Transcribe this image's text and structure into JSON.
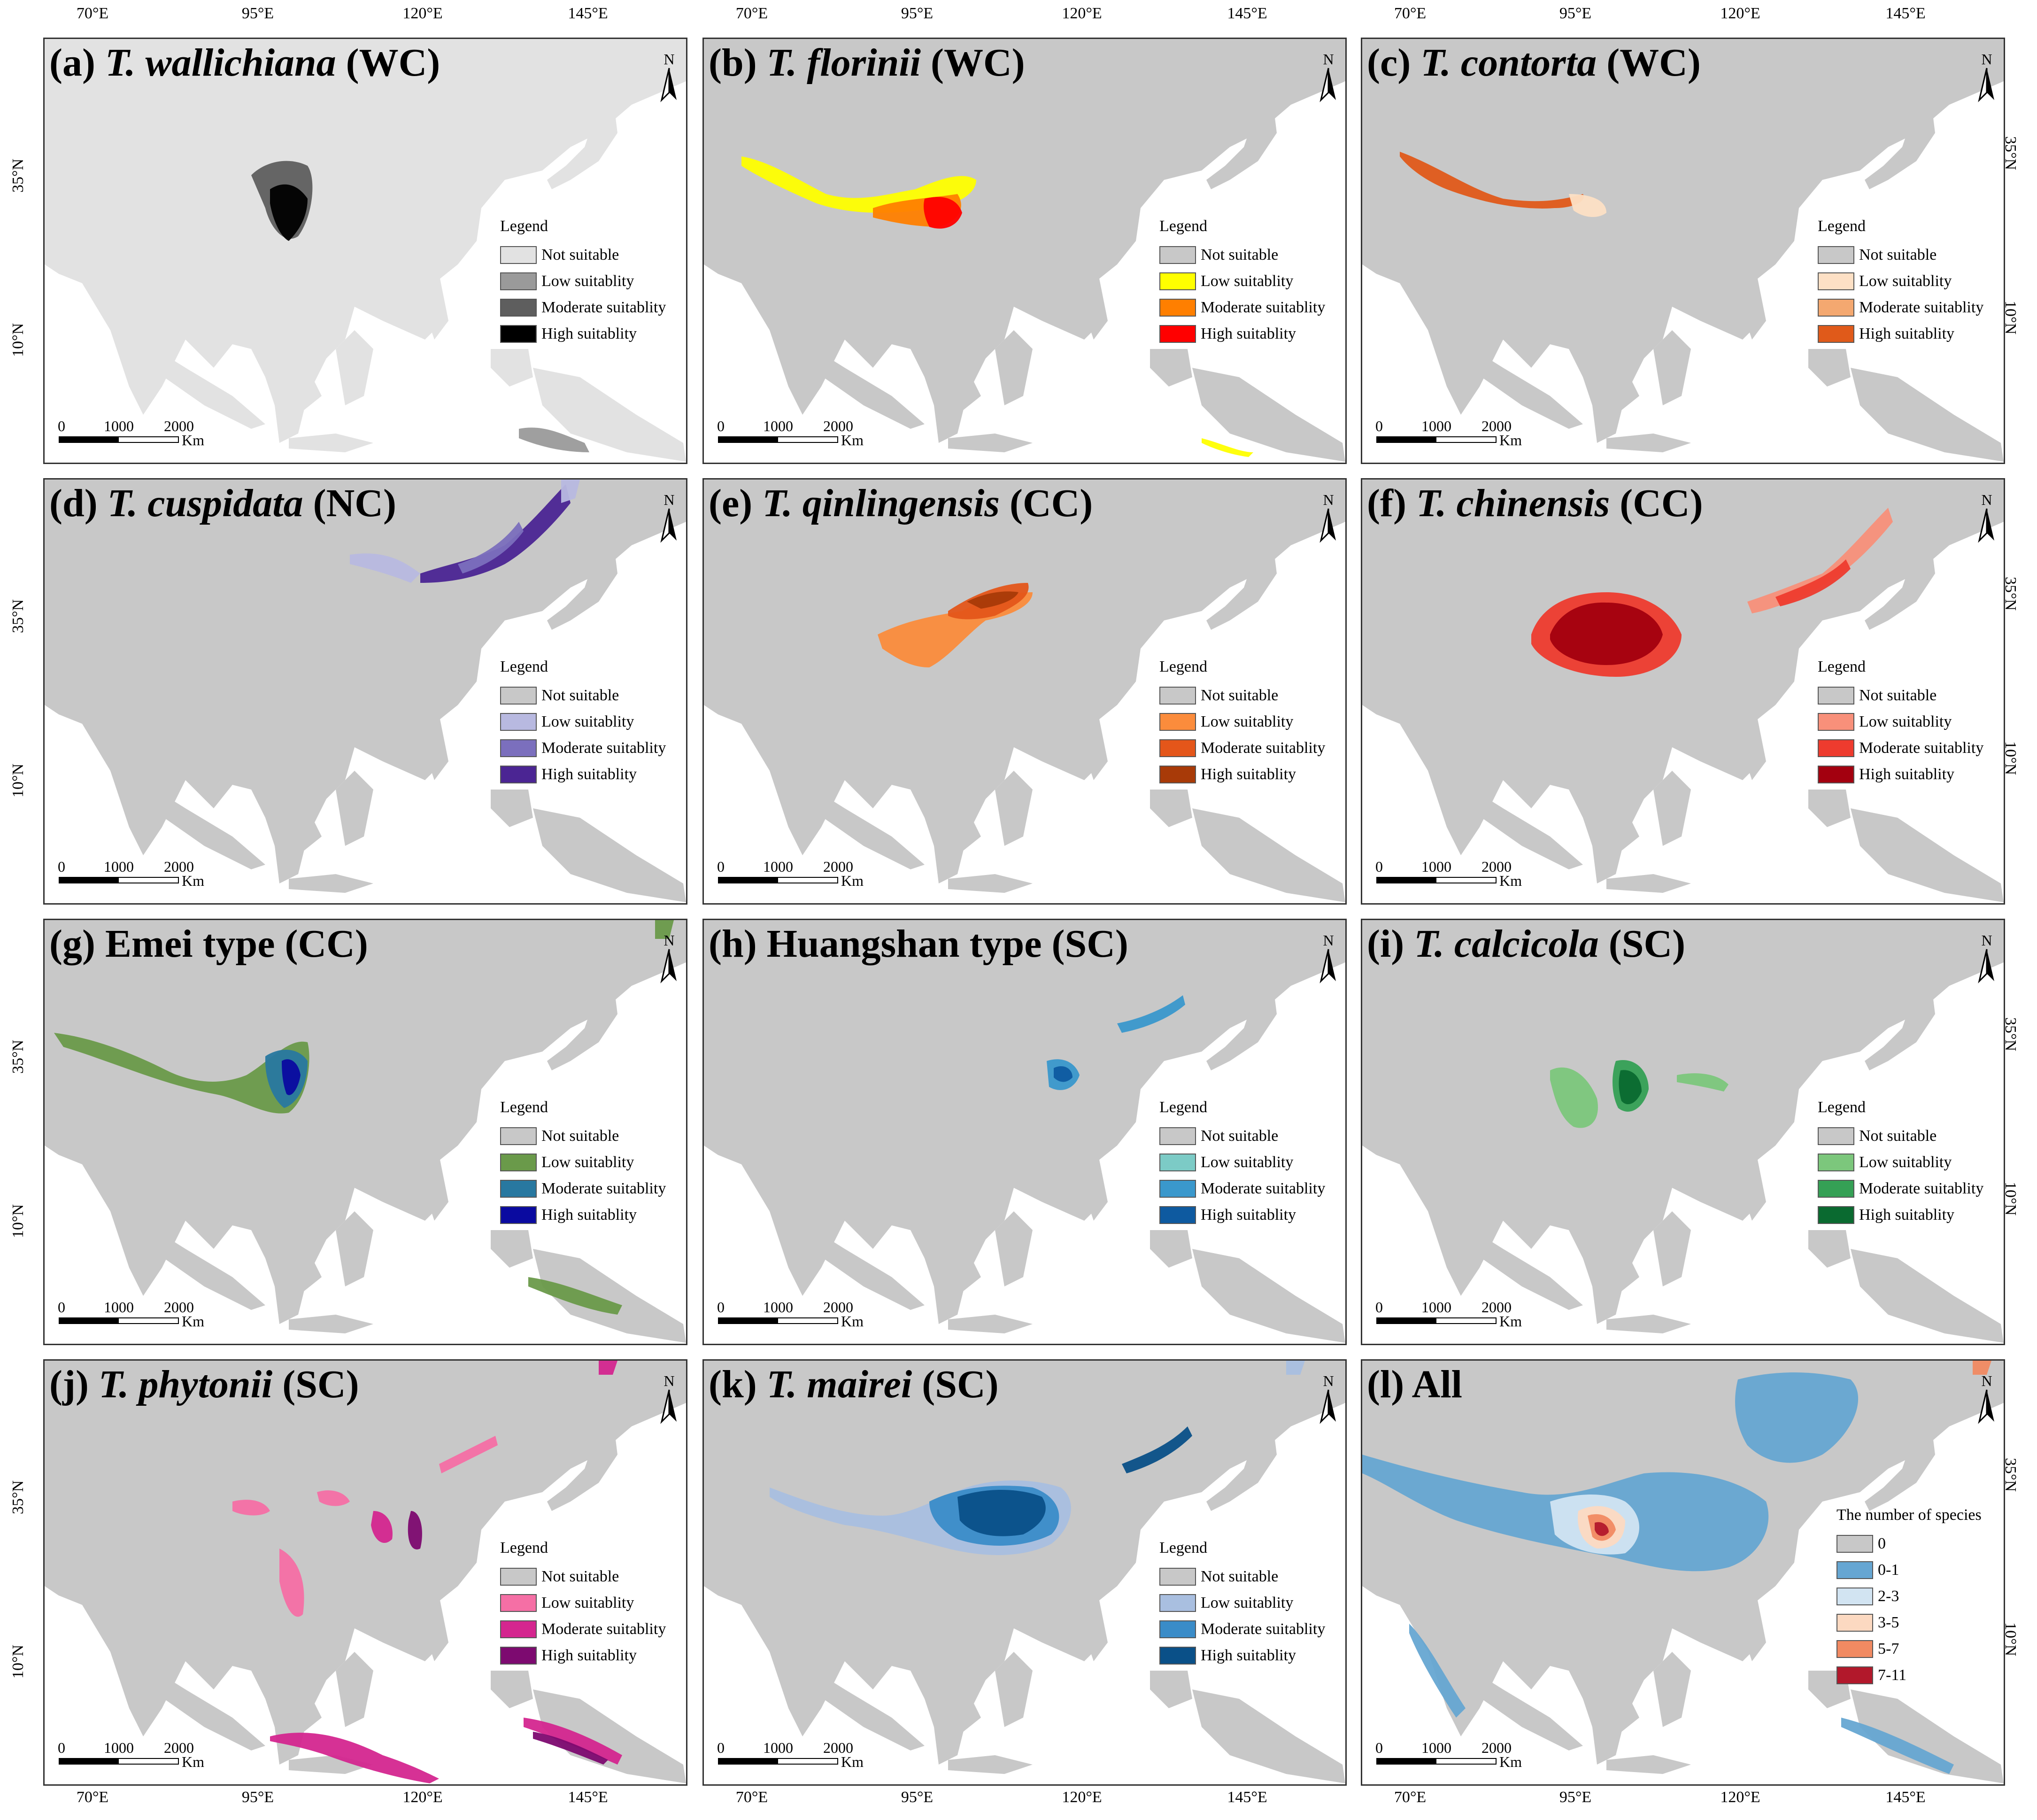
{
  "longitude_labels": [
    "70°E",
    "95°E",
    "120°E",
    "145°E"
  ],
  "latitude_labels": [
    "35°N",
    "10°N"
  ],
  "north_label": "N",
  "scalebar": {
    "labels": [
      "0",
      "1000",
      "2000"
    ],
    "unit": "Km"
  },
  "land_color": "#c8c8c8",
  "ocean_color": "#ffffff",
  "panels": [
    {
      "id": "a",
      "prefix": "(a) ",
      "species": "T. wallichiana",
      "suffix": " (WC)",
      "land_color": "#e2e2e2",
      "legend_title": "Legend",
      "legend": [
        {
          "label": "Not suitable",
          "color": "#e2e2e2"
        },
        {
          "label": "Low suitablity",
          "color": "#9a9a9a"
        },
        {
          "label": "Moderate suitablity",
          "color": "#5e5e5e"
        },
        {
          "label": "High suitablity",
          "color": "#000000"
        }
      ]
    },
    {
      "id": "b",
      "prefix": "(b) ",
      "species": "T. florinii",
      "suffix": " (WC)",
      "land_color": "#c8c8c8",
      "legend_title": "Legend",
      "legend": [
        {
          "label": "Not suitable",
          "color": "#c8c8c8"
        },
        {
          "label": "Low suitablity",
          "color": "#ffff00"
        },
        {
          "label": "Moderate suitablity",
          "color": "#ff7f00"
        },
        {
          "label": "High suitablity",
          "color": "#ff0000"
        }
      ]
    },
    {
      "id": "c",
      "prefix": "(c) ",
      "species": "T. contorta",
      "suffix": " (WC)",
      "land_color": "#c8c8c8",
      "legend_title": "Legend",
      "legend": [
        {
          "label": "Not suitable",
          "color": "#c8c8c8"
        },
        {
          "label": "Low suitablity",
          "color": "#fde0c5"
        },
        {
          "label": "Moderate suitablity",
          "color": "#f4a870"
        },
        {
          "label": "High suitablity",
          "color": "#e05a1a"
        }
      ]
    },
    {
      "id": "d",
      "prefix": "(d) ",
      "species": "T. cuspidata",
      "suffix": " (NC)",
      "land_color": "#c8c8c8",
      "legend_title": "Legend",
      "legend": [
        {
          "label": "Not suitable",
          "color": "#c8c8c8"
        },
        {
          "label": "Low suitablity",
          "color": "#b8b9e0"
        },
        {
          "label": "Moderate suitablity",
          "color": "#7b6fbd"
        },
        {
          "label": "High suitablity",
          "color": "#4b2593"
        }
      ]
    },
    {
      "id": "e",
      "prefix": "(e) ",
      "species": "T. qinlingensis",
      "suffix": " (CC)",
      "land_color": "#c8c8c8",
      "legend_title": "Legend",
      "legend": [
        {
          "label": "Not suitable",
          "color": "#c8c8c8"
        },
        {
          "label": "Low suitablity",
          "color": "#fb8c3c"
        },
        {
          "label": "Moderate suitablity",
          "color": "#e4561a"
        },
        {
          "label": "High suitablity",
          "color": "#a83a08"
        }
      ]
    },
    {
      "id": "f",
      "prefix": "(f) ",
      "species": "T. chinensis",
      "suffix": " (CC)",
      "land_color": "#c8c8c8",
      "legend_title": "Legend",
      "legend": [
        {
          "label": "Not suitable",
          "color": "#c8c8c8"
        },
        {
          "label": "Low suitablity",
          "color": "#f8907a"
        },
        {
          "label": "Moderate suitablity",
          "color": "#ee3b2e"
        },
        {
          "label": "High suitablity",
          "color": "#a3000f"
        }
      ]
    },
    {
      "id": "g",
      "prefix": "(g) ",
      "species": "",
      "suffix": "Emei type  (CC)",
      "land_color": "#c8c8c8",
      "legend_title": "Legend",
      "legend": [
        {
          "label": "Not suitable",
          "color": "#c8c8c8"
        },
        {
          "label": "Low suitablity",
          "color": "#6a9a4a"
        },
        {
          "label": "Moderate suitablity",
          "color": "#2878a0"
        },
        {
          "label": "High suitablity",
          "color": "#0a0aa0"
        }
      ]
    },
    {
      "id": "h",
      "prefix": "(h) ",
      "species": "",
      "suffix": "Huangshan type (SC)",
      "land_color": "#c8c8c8",
      "legend_title": "Legend",
      "legend": [
        {
          "label": "Not suitable",
          "color": "#c8c8c8"
        },
        {
          "label": "Low suitablity",
          "color": "#7ccbc6"
        },
        {
          "label": "Moderate suitablity",
          "color": "#3a98cc"
        },
        {
          "label": "High suitablity",
          "color": "#0e5aa0"
        }
      ]
    },
    {
      "id": "i",
      "prefix": "(i) ",
      "species": "T. calcicola",
      "suffix": " (SC)",
      "land_color": "#c8c8c8",
      "legend_title": "Legend",
      "legend": [
        {
          "label": "Not suitable",
          "color": "#c8c8c8"
        },
        {
          "label": "Low suitablity",
          "color": "#7cc77c"
        },
        {
          "label": "Moderate suitablity",
          "color": "#35a055"
        },
        {
          "label": "High suitablity",
          "color": "#0a6a30"
        }
      ]
    },
    {
      "id": "j",
      "prefix": "(j) ",
      "species": "T. phytonii",
      "suffix": " (SC)",
      "land_color": "#c8c8c8",
      "legend_title": "Legend",
      "legend": [
        {
          "label": "Not suitable",
          "color": "#c8c8c8"
        },
        {
          "label": "Low suitablity",
          "color": "#f56fa5"
        },
        {
          "label": "Moderate suitablity",
          "color": "#d4268f"
        },
        {
          "label": "High suitablity",
          "color": "#7d0a70"
        }
      ]
    },
    {
      "id": "k",
      "prefix": "(k) ",
      "species": "T. mairei",
      "suffix": " (SC)",
      "land_color": "#c8c8c8",
      "legend_title": "Legend",
      "legend": [
        {
          "label": "Not suitable",
          "color": "#c8c8c8"
        },
        {
          "label": "Low suitablity",
          "color": "#a9bfe0"
        },
        {
          "label": "Moderate suitablity",
          "color": "#3a8cc8"
        },
        {
          "label": "High suitablity",
          "color": "#0a5088"
        }
      ]
    },
    {
      "id": "l",
      "prefix": "(l) ",
      "species": "",
      "suffix": "All",
      "land_color": "#c8c8c8",
      "legend_title": "The number of species",
      "legend": [
        {
          "label": "0",
          "color": "#c8c8c8"
        },
        {
          "label": "0-1",
          "color": "#66a6d2"
        },
        {
          "label": "2-3",
          "color": "#d2e4f2"
        },
        {
          "label": "3-5",
          "color": "#fcd9c1"
        },
        {
          "label": "5-7",
          "color": "#f18a62"
        },
        {
          "label": "7-11",
          "color": "#b2182b"
        }
      ]
    }
  ]
}
